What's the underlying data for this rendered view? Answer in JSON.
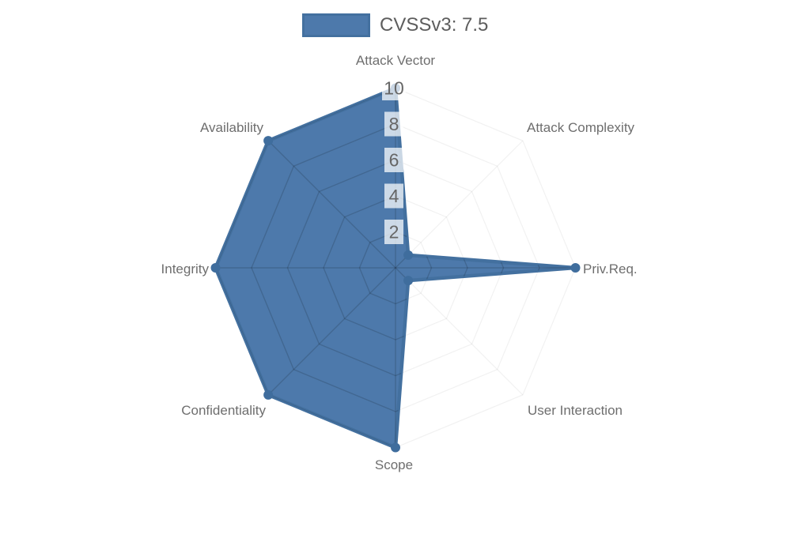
{
  "chart_data": {
    "type": "radar",
    "title": "",
    "legend_label": "CVSSv3: 7.5",
    "legend_position": "top",
    "axes": [
      "Attack Vector",
      "Attack Complexity",
      "Priv.Req.",
      "User Interaction",
      "Scope",
      "Confidentiality",
      "Integrity",
      "Availability"
    ],
    "series": [
      {
        "name": "CVSSv3: 7.5",
        "values": [
          10,
          1,
          10,
          1,
          10,
          10,
          10,
          10
        ]
      }
    ],
    "scale": {
      "min": 0,
      "max": 10,
      "tick_values": [
        2,
        4,
        6,
        8,
        10
      ],
      "tick_labels": [
        "2",
        "4",
        "6",
        "8",
        "10"
      ]
    },
    "grid": true,
    "colors": {
      "series_fill": "#4d79ab",
      "series_border": "#43709f",
      "point": "#3f6d9d",
      "grid_inner": "rgba(0,0,0,0.15)",
      "grid_outer": "rgba(0,0,0,0.055)",
      "tick_text": "#666666",
      "tick_backdrop": "rgba(255,255,255,0.72)",
      "label_text": "#6e6e6e",
      "legend_text": "#5d5d5d"
    }
  }
}
